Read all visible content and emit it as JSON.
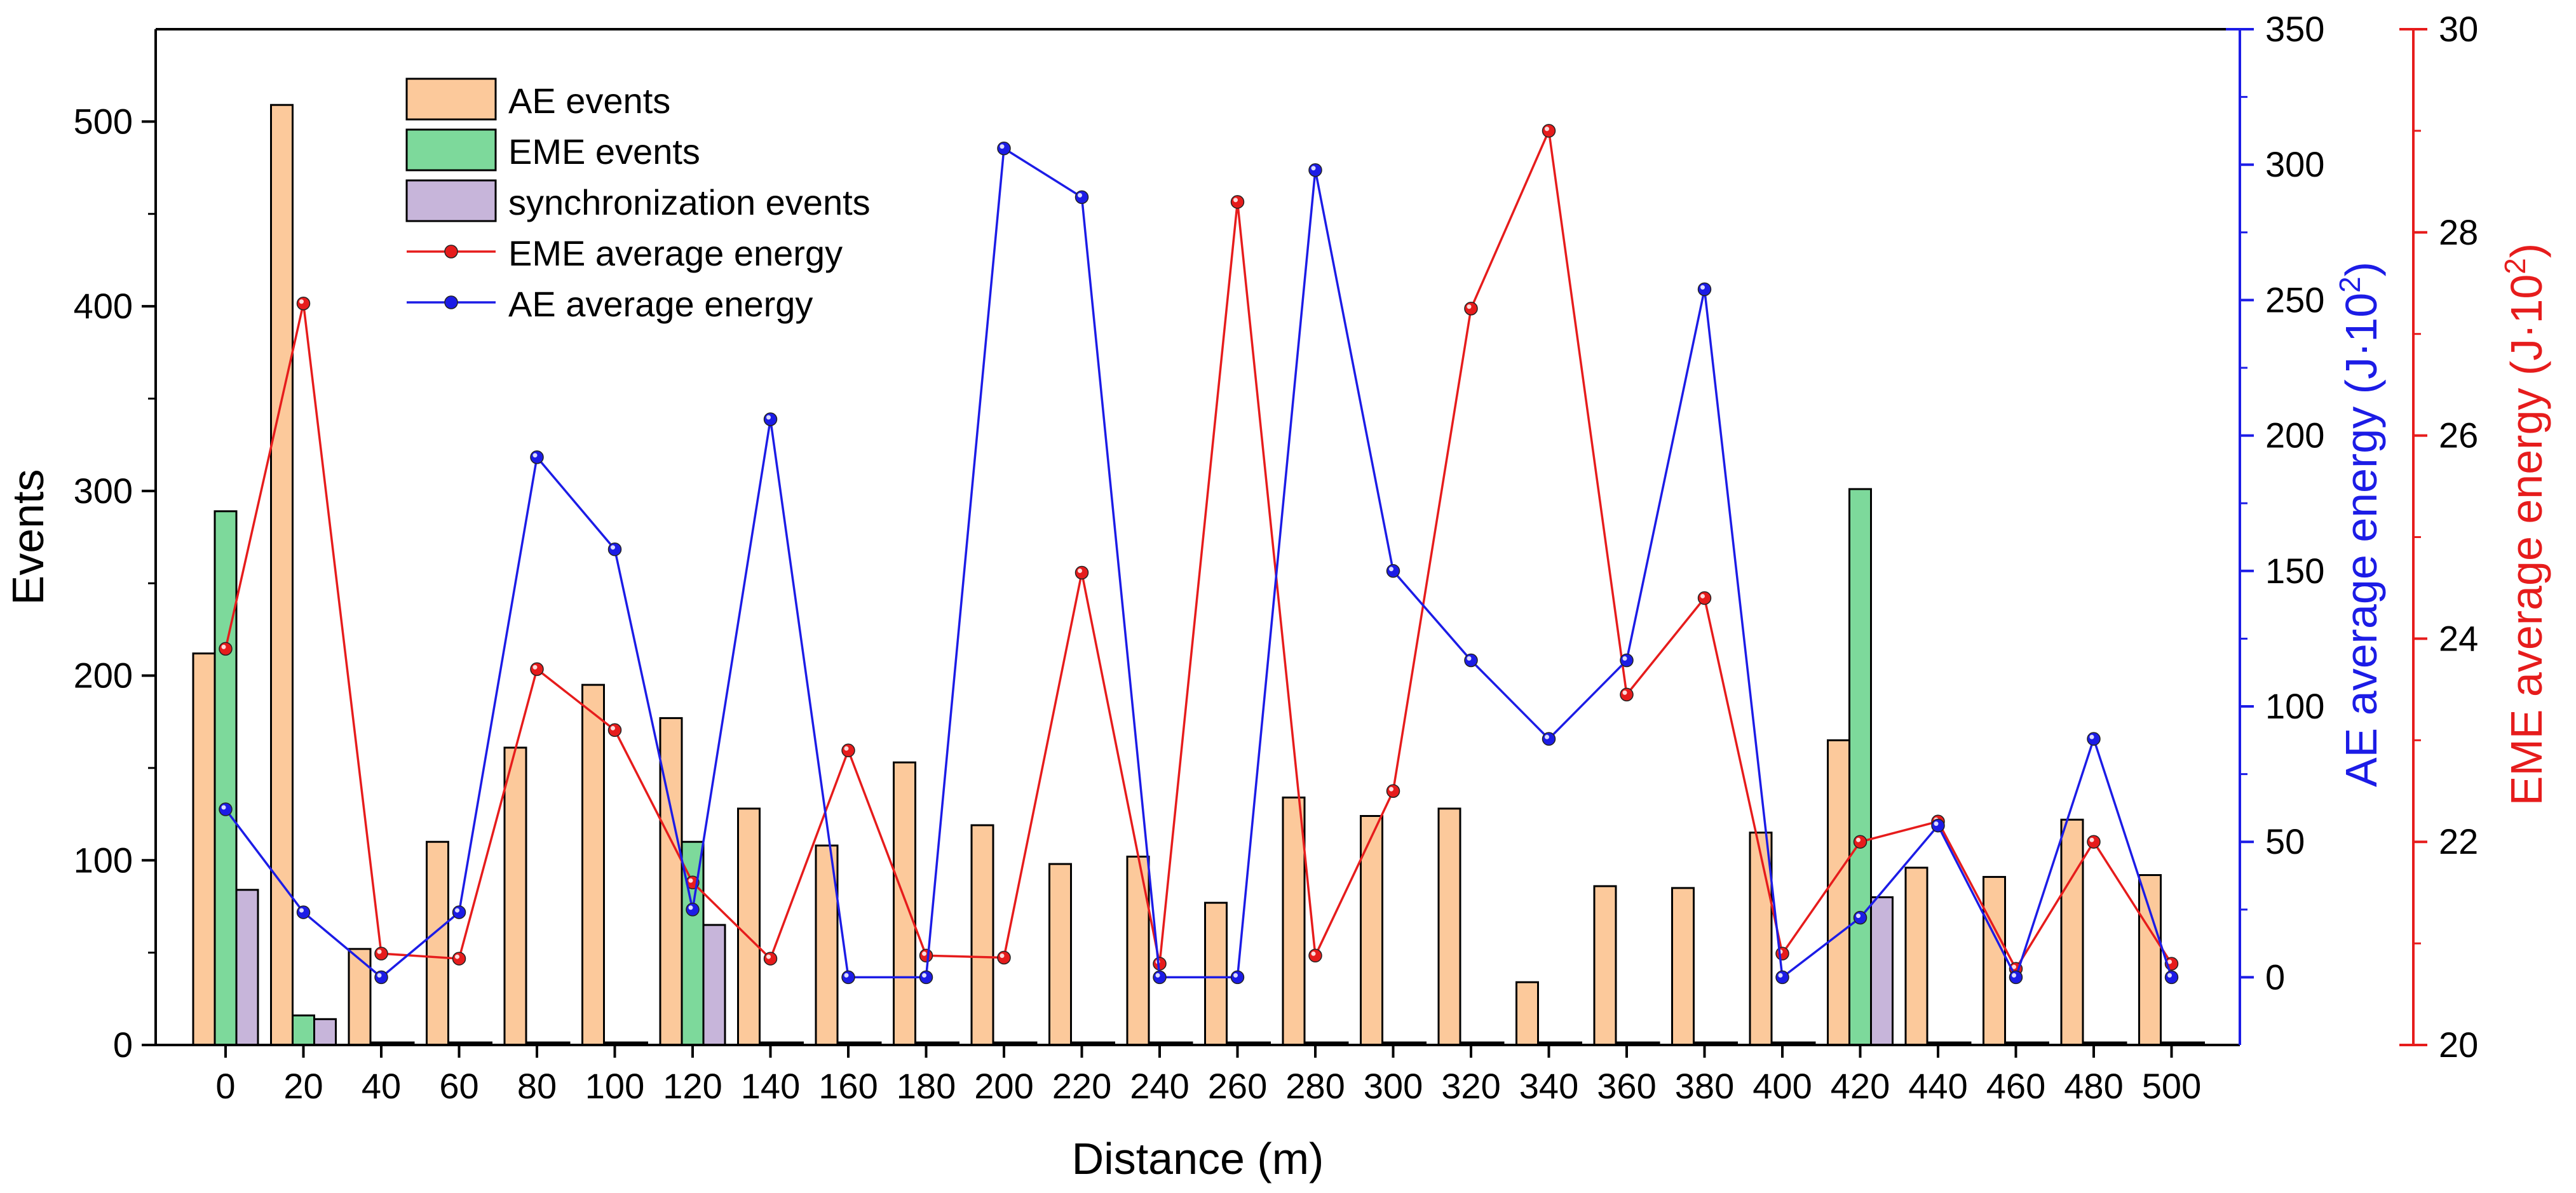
{
  "chart_data": {
    "type": "bar+line",
    "x_categories": [
      "0",
      "20",
      "40",
      "60",
      "80",
      "100",
      "120",
      "140",
      "160",
      "180",
      "200",
      "220",
      "240",
      "260",
      "280",
      "300",
      "320",
      "340",
      "360",
      "380",
      "400",
      "420",
      "440",
      "460",
      "480",
      "500"
    ],
    "x_label": "Distance (m)",
    "left_axis": {
      "label": "Events",
      "range": [
        0,
        550
      ],
      "ticks": [
        0,
        100,
        200,
        300,
        400,
        500
      ]
    },
    "right_axis_1": {
      "label_main": "AE average energy (J·10",
      "label_sup": "2",
      "label_close": ")",
      "range": [
        -25,
        350
      ],
      "ticks": [
        0,
        50,
        100,
        150,
        200,
        250,
        300,
        350
      ],
      "color": "#1c1ce6"
    },
    "right_axis_2": {
      "label_main": "EME average energy (J·10",
      "label_sup": "2",
      "label_close": ")",
      "range": [
        20,
        30
      ],
      "ticks": [
        20,
        22,
        24,
        26,
        28,
        30
      ],
      "color": "#e61c1c"
    },
    "bar_series": [
      {
        "name": "AE events",
        "color": "#fcc99b",
        "values": [
          212,
          509,
          52,
          110,
          161,
          195,
          177,
          128,
          108,
          153,
          119,
          98,
          102,
          77,
          134,
          124,
          128,
          34,
          86,
          85,
          115,
          165,
          96,
          91,
          122,
          92
        ]
      },
      {
        "name": "EME events",
        "color": "#7dd99b",
        "values": [
          289,
          16,
          0,
          0,
          0,
          0,
          110,
          0,
          0,
          0,
          0,
          0,
          0,
          0,
          0,
          0,
          0,
          0,
          0,
          0,
          0,
          301,
          0,
          0,
          0,
          0
        ]
      },
      {
        "name": "synchronization events",
        "color": "#c7b5da",
        "values": [
          84,
          14,
          0,
          0,
          0,
          0,
          65,
          0,
          0,
          0,
          0,
          0,
          0,
          0,
          0,
          0,
          0,
          0,
          0,
          0,
          0,
          80,
          0,
          0,
          0,
          0
        ]
      }
    ],
    "line_series": [
      {
        "name": "EME average energy",
        "axis": "right_axis_2",
        "color": "#e61c1c",
        "values": [
          23.9,
          27.3,
          20.9,
          20.85,
          23.7,
          23.1,
          21.6,
          20.85,
          22.9,
          20.88,
          20.86,
          24.65,
          20.8,
          28.3,
          20.88,
          22.5,
          27.25,
          29.0,
          23.45,
          24.4,
          20.9,
          22.0,
          22.2,
          20.75,
          22.0,
          20.8
        ]
      },
      {
        "name": "AE average energy",
        "axis": "right_axis_1",
        "color": "#1c1ce6",
        "values": [
          62,
          24,
          0,
          24,
          192,
          158,
          25,
          206,
          0,
          0,
          306,
          288,
          0,
          0,
          298,
          150,
          117,
          88,
          117,
          254,
          0,
          22,
          56,
          0,
          88,
          0
        ]
      }
    ],
    "legend_position": "top-left",
    "grid": false
  }
}
